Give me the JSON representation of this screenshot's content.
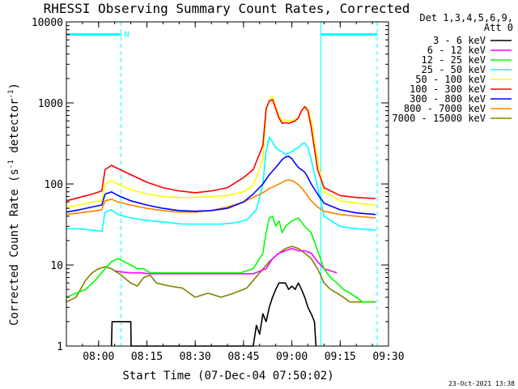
{
  "chart_data": {
    "type": "line",
    "title": "RHESSI Observing Summary Count Rates, Corrected",
    "xlabel": "Start Time (07-Dec-04 07:50:02)",
    "ylabel_main": "Corrected Count Rate (s",
    "ylabel_sup1": "-1",
    "ylabel_mid": " detector",
    "ylabel_sup2": "-1",
    "ylabel_end": ")",
    "x_unit": "minutes after 07:50:02",
    "xlim": [
      0,
      100
    ],
    "ylim": [
      1,
      10000
    ],
    "yscale": "log",
    "x_ticks": [
      {
        "x": 10,
        "label": "08:00"
      },
      {
        "x": 25,
        "label": "08:15"
      },
      {
        "x": 40,
        "label": "08:30"
      },
      {
        "x": 55,
        "label": "08:45"
      },
      {
        "x": 70,
        "label": "09:00"
      },
      {
        "x": 85,
        "label": "09:15"
      },
      {
        "x": 100,
        "label": "09:30"
      }
    ],
    "y_ticks": [
      {
        "y": 1,
        "label": "1"
      },
      {
        "y": 10,
        "label": "10"
      },
      {
        "y": 100,
        "label": "100"
      },
      {
        "y": 1000,
        "label": "1000"
      },
      {
        "y": 10000,
        "label": "10000"
      }
    ],
    "legend_header": [
      "Det 1,3,4,5,6,9,",
      "Att 0"
    ],
    "legend_position": "right",
    "footer_timestamp": "23-Oct-2021 13:38",
    "night_marker": "N",
    "night_bars": [
      {
        "x0": 0,
        "x1": 17,
        "y": 7000,
        "color": "#00ffff"
      },
      {
        "x0": 79,
        "x1": 96.5,
        "y": 7000,
        "color": "#00ffff"
      }
    ],
    "vlines_solid": [
      79
    ],
    "vlines_dashed": [
      17,
      96.5
    ],
    "series": [
      {
        "name": "3 - 6 keV",
        "color": "#000000",
        "x": [
          14,
          14.2,
          15,
          16,
          17,
          18,
          19,
          20,
          20.1,
          58,
          59,
          60,
          61,
          62,
          63,
          64,
          65,
          66,
          67,
          68,
          69,
          70,
          71,
          72,
          73,
          74,
          75,
          76,
          77,
          77.5
        ],
        "y": [
          1,
          2,
          2,
          2,
          2,
          2,
          2,
          2,
          1,
          1,
          1.8,
          1.4,
          2.5,
          2,
          3,
          4,
          5,
          6,
          6,
          6,
          5,
          5.5,
          5,
          6,
          5,
          4,
          3,
          2.5,
          2,
          1
        ]
      },
      {
        "name": "6 - 12 keV",
        "color": "#ff00ff",
        "x": [
          15,
          17,
          20,
          23,
          26,
          30,
          34,
          38,
          42,
          46,
          50,
          54,
          58,
          62,
          64,
          66,
          68,
          70,
          72,
          74,
          76,
          78,
          80,
          82,
          84
        ],
        "y": [
          8.5,
          8.2,
          8,
          8,
          7.8,
          7.8,
          7.8,
          7.8,
          7.8,
          7.8,
          7.8,
          7.8,
          7.8,
          9,
          12,
          14,
          15,
          16,
          15,
          15,
          14,
          11,
          9,
          8.5,
          8
        ]
      },
      {
        "name": "12 - 25 keV",
        "color": "#00ff00",
        "x": [
          0,
          3,
          6,
          9,
          12,
          14,
          16,
          18,
          20,
          22,
          24,
          26,
          30,
          34,
          38,
          42,
          46,
          50,
          54,
          58,
          61,
          62,
          63,
          64,
          65,
          66,
          67,
          68,
          70,
          72,
          74,
          76,
          78,
          80,
          82,
          84,
          86,
          88,
          90,
          92,
          95
        ],
        "y": [
          4,
          4.5,
          5,
          6.5,
          9,
          11,
          12,
          11,
          10,
          9,
          9,
          8,
          8,
          8,
          8,
          8,
          8,
          8,
          8,
          9,
          14,
          25,
          38,
          40,
          30,
          35,
          25,
          30,
          35,
          38,
          30,
          25,
          15,
          9,
          7,
          6,
          5,
          4.5,
          4,
          3.5,
          3.5
        ]
      },
      {
        "name": "25 - 50 keV",
        "color": "#00ffff",
        "x": [
          0,
          4,
          8,
          11,
          12,
          14,
          16,
          18,
          20,
          24,
          30,
          36,
          42,
          48,
          52,
          56,
          59,
          61,
          62,
          63,
          64,
          65,
          66,
          67,
          68,
          69,
          70,
          71,
          72,
          73,
          74,
          75,
          76,
          78,
          80,
          85,
          90,
          96
        ],
        "y": [
          28,
          28,
          27,
          26,
          45,
          48,
          42,
          40,
          38,
          36,
          34,
          32,
          32,
          32,
          33,
          36,
          48,
          100,
          250,
          380,
          330,
          280,
          260,
          250,
          230,
          240,
          250,
          270,
          280,
          310,
          320,
          280,
          200,
          90,
          40,
          30,
          28,
          27
        ]
      },
      {
        "name": "50 - 100 keV",
        "color": "#ffff00",
        "x": [
          0,
          4,
          8,
          11,
          12,
          14,
          16,
          20,
          25,
          30,
          35,
          40,
          45,
          50,
          55,
          58,
          61,
          62,
          63,
          64,
          65,
          66,
          67,
          68,
          69,
          70,
          71,
          72,
          73,
          74,
          75,
          76,
          78,
          80,
          85,
          90,
          96
        ],
        "y": [
          52,
          55,
          60,
          62,
          100,
          110,
          100,
          85,
          75,
          70,
          68,
          68,
          70,
          72,
          80,
          95,
          200,
          800,
          1100,
          1200,
          900,
          700,
          600,
          620,
          600,
          610,
          620,
          650,
          800,
          900,
          850,
          600,
          200,
          80,
          62,
          58,
          55
        ]
      },
      {
        "name": "100 - 300 keV",
        "color": "#ff0000",
        "x": [
          0,
          4,
          8,
          11,
          12,
          14,
          16,
          20,
          25,
          30,
          35,
          40,
          45,
          50,
          55,
          58,
          61,
          62,
          63,
          64,
          65,
          66,
          67,
          68,
          69,
          70,
          71,
          72,
          73,
          74,
          75,
          76,
          78,
          80,
          85,
          90,
          96
        ],
        "y": [
          62,
          68,
          75,
          82,
          150,
          170,
          155,
          130,
          105,
          90,
          82,
          78,
          82,
          90,
          120,
          150,
          300,
          850,
          1050,
          1100,
          850,
          650,
          560,
          570,
          560,
          580,
          600,
          650,
          800,
          900,
          800,
          500,
          150,
          90,
          72,
          68,
          66
        ]
      },
      {
        "name": "300 - 800 keV",
        "color": "#0000ff",
        "x": [
          0,
          4,
          8,
          11,
          12,
          14,
          16,
          20,
          25,
          30,
          35,
          40,
          45,
          50,
          55,
          58,
          61,
          63,
          65,
          67,
          68,
          69,
          70,
          71,
          72,
          73,
          74,
          75,
          76,
          78,
          80,
          85,
          90,
          96
        ],
        "y": [
          45,
          48,
          52,
          55,
          75,
          80,
          72,
          62,
          55,
          50,
          47,
          46,
          47,
          50,
          60,
          75,
          100,
          130,
          160,
          200,
          215,
          220,
          205,
          180,
          160,
          150,
          140,
          120,
          100,
          75,
          58,
          48,
          44,
          42
        ]
      },
      {
        "name": "800 - 7000 keV",
        "color": "#ff8000",
        "x": [
          0,
          4,
          8,
          11,
          12,
          14,
          16,
          20,
          25,
          30,
          35,
          40,
          45,
          50,
          55,
          58,
          61,
          63,
          65,
          67,
          68,
          69,
          70,
          71,
          72,
          73,
          74,
          75,
          76,
          78,
          80,
          85,
          90,
          96
        ],
        "y": [
          42,
          44,
          46,
          48,
          62,
          65,
          60,
          55,
          50,
          47,
          45,
          45,
          47,
          52,
          60,
          68,
          78,
          88,
          95,
          105,
          110,
          112,
          110,
          105,
          98,
          90,
          80,
          70,
          62,
          52,
          46,
          42,
          40,
          38
        ]
      },
      {
        "name": "7000 - 15000 keV",
        "color": "#808000",
        "x": [
          0,
          3,
          6,
          8,
          10,
          12,
          14,
          17,
          20,
          22,
          24,
          26,
          28,
          32,
          36,
          40,
          44,
          48,
          52,
          56,
          60,
          63,
          66,
          68,
          70,
          72,
          74,
          76,
          78,
          80,
          82,
          84,
          86,
          88,
          90,
          93,
          96
        ],
        "y": [
          3.5,
          4,
          6.5,
          8,
          9,
          9.5,
          9,
          7.5,
          6,
          5.5,
          7,
          7.5,
          6,
          5.5,
          5.2,
          4,
          4.5,
          4,
          4.5,
          5.2,
          8,
          11,
          14,
          16,
          17,
          16,
          14,
          12,
          9,
          6,
          5,
          4.5,
          4,
          3.5,
          3.5,
          3.5,
          3.5
        ]
      }
    ]
  }
}
